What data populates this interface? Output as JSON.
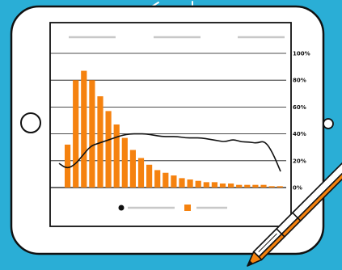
{
  "colors": {
    "background": "#2AAED6",
    "frame": "#FFFFFF",
    "frame_stroke": "#111111",
    "bar": "#F5820F",
    "line": "#111111",
    "placeholder": "#C8C8C8",
    "pencil_body": "#FFFFFF",
    "pencil_accent": "#F5820F"
  },
  "icons": {
    "camera": "circle-camera-icon",
    "home_button": "circle-home-button-icon",
    "pencil": "stylus-pencil-icon",
    "legend_line": "line-series-legend-icon",
    "legend_bar": "bar-series-legend-icon"
  },
  "chart_data": {
    "type": "bar",
    "title": "",
    "xlabel": "",
    "ylabel": "",
    "ylim": [
      0,
      100
    ],
    "yticks": [
      "0%",
      "20%",
      "40%",
      "60%",
      "80%",
      "100%"
    ],
    "legend": "bottom",
    "grid": true,
    "series": [
      {
        "type": "bar",
        "values": [
          32,
          80,
          87,
          80,
          68,
          57,
          47,
          37,
          28,
          22,
          17,
          13,
          11,
          9,
          7,
          6,
          5,
          4,
          4,
          3,
          3,
          2,
          2,
          2,
          2,
          1,
          1
        ]
      },
      {
        "type": "line",
        "values": [
          18,
          14,
          17,
          24,
          31,
          33,
          35,
          37,
          39,
          40,
          40,
          40,
          39,
          38,
          38,
          38,
          37,
          37,
          37,
          36,
          35,
          34,
          36,
          34,
          34,
          33,
          35,
          26,
          12
        ]
      }
    ]
  }
}
